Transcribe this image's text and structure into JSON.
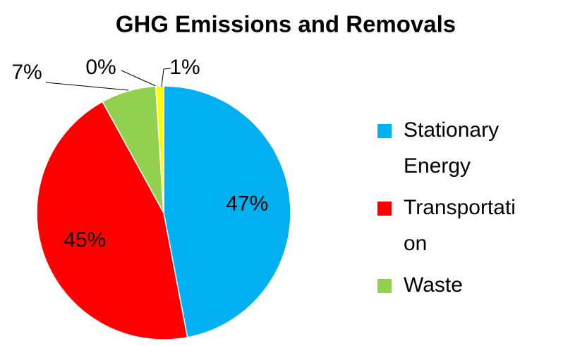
{
  "chart_data": {
    "type": "pie",
    "title": "GHG Emissions and Removals",
    "categories": [
      "Stationary Energy",
      "Transportation",
      "Waste",
      null,
      null
    ],
    "values": [
      47,
      45,
      7,
      0,
      1
    ],
    "value_labels": [
      "47%",
      "45%",
      "7%",
      "0%",
      "1%"
    ],
    "colors": [
      "#00b0f0",
      "#ff0000",
      "#92d050",
      "#d9d9d9",
      "#ffff00"
    ]
  }
}
